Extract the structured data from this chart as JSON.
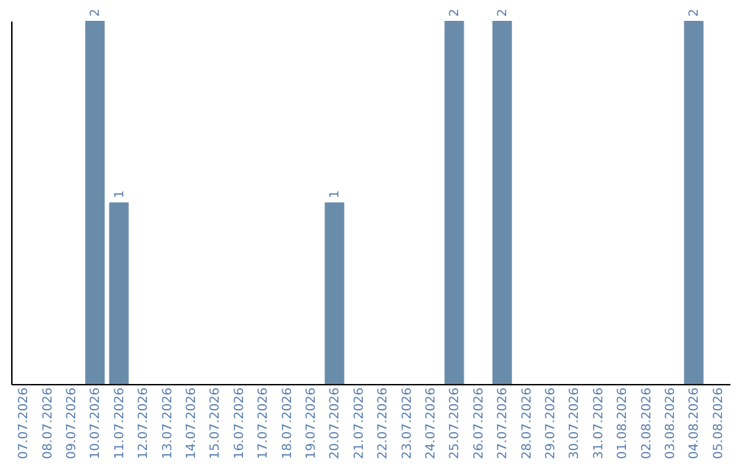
{
  "chart_data": {
    "type": "bar",
    "categories": [
      "07.07.2026",
      "08.07.2026",
      "09.07.2026",
      "10.07.2026",
      "11.07.2026",
      "12.07.2026",
      "13.07.2026",
      "14.07.2026",
      "15.07.2026",
      "16.07.2026",
      "17.07.2026",
      "18.07.2026",
      "19.07.2026",
      "20.07.2026",
      "21.07.2026",
      "22.07.2026",
      "23.07.2026",
      "24.07.2026",
      "25.07.2026",
      "26.07.2026",
      "27.07.2026",
      "28.07.2026",
      "29.07.2026",
      "30.07.2026",
      "31.07.2026",
      "01.08.2026",
      "02.08.2026",
      "03.08.2026",
      "04.08.2026",
      "05.08.2026"
    ],
    "values": [
      0,
      0,
      0,
      2,
      1,
      0,
      0,
      0,
      0,
      0,
      0,
      0,
      0,
      1,
      0,
      0,
      0,
      0,
      2,
      0,
      2,
      0,
      0,
      0,
      0,
      0,
      0,
      0,
      2,
      0
    ],
    "value_labels": [
      null,
      null,
      null,
      "2",
      "1",
      null,
      null,
      null,
      null,
      null,
      null,
      null,
      null,
      "1",
      null,
      null,
      null,
      null,
      "2",
      null,
      "2",
      null,
      null,
      null,
      null,
      null,
      null,
      null,
      "2",
      null
    ],
    "color": "#6a8cab",
    "ylim": [
      0,
      2
    ],
    "tick_labels": "x",
    "grid": false
  }
}
